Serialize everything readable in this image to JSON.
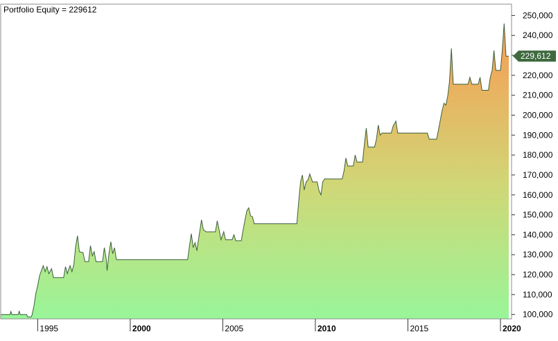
{
  "chart_data": {
    "type": "area",
    "title": "Portfolio Equity = 229612",
    "xlabel": "",
    "ylabel": "",
    "xlim": [
      1993.0,
      2020.6
    ],
    "ylim": [
      97800,
      255700
    ],
    "y_ticks": [
      100000,
      110000,
      120000,
      130000,
      140000,
      150000,
      160000,
      170000,
      180000,
      190000,
      200000,
      210000,
      220000,
      230000,
      240000,
      250000
    ],
    "y_tick_labels": [
      "100,000",
      "110,000",
      "120,000",
      "130,000",
      "140,000",
      "150,000",
      "160,000",
      "170,000",
      "180,000",
      "190,000",
      "200,000",
      "210,000",
      "220,000",
      "230,000",
      "240,000",
      "250,000"
    ],
    "x_ticks": [
      1995,
      2000,
      2005,
      2010,
      2015,
      2020
    ],
    "x_tick_labels": [
      "1995",
      "2000",
      "2005",
      "2010",
      "2015",
      "2020"
    ],
    "x_tick_bold": [
      false,
      true,
      false,
      true,
      false,
      true
    ],
    "last_value_label": "229,612",
    "last_value": 229612,
    "grid": false,
    "gradient": {
      "bottom": "#99f599",
      "middle": "#cfd877",
      "top": "#f0a75a"
    },
    "line_color": "#3b5f3b",
    "marker_color": "#3f6a3f",
    "series": [
      {
        "values": [
          [
            1993.0,
            100000
          ],
          [
            1993.5,
            100000
          ],
          [
            1993.55,
            101500
          ],
          [
            1993.6,
            100000
          ],
          [
            1993.95,
            100000
          ],
          [
            1994.0,
            101800
          ],
          [
            1994.05,
            100000
          ],
          [
            1994.4,
            100000
          ],
          [
            1994.45,
            98800
          ],
          [
            1994.65,
            98800
          ],
          [
            1994.7,
            100000
          ],
          [
            1994.8,
            104500
          ],
          [
            1994.9,
            110500
          ],
          [
            1995.0,
            114500
          ],
          [
            1995.1,
            119500
          ],
          [
            1995.2,
            122000
          ],
          [
            1995.3,
            124500
          ],
          [
            1995.4,
            121500
          ],
          [
            1995.5,
            124000
          ],
          [
            1995.6,
            120500
          ],
          [
            1995.75,
            123000
          ],
          [
            1995.85,
            118500
          ],
          [
            1996.4,
            118500
          ],
          [
            1996.5,
            124000
          ],
          [
            1996.6,
            120500
          ],
          [
            1996.75,
            124500
          ],
          [
            1996.85,
            121500
          ],
          [
            1996.95,
            125000
          ],
          [
            1997.05,
            134000
          ],
          [
            1997.15,
            139500
          ],
          [
            1997.25,
            131500
          ],
          [
            1997.45,
            131000
          ],
          [
            1997.55,
            126500
          ],
          [
            1997.75,
            126500
          ],
          [
            1997.85,
            134500
          ],
          [
            1997.95,
            129500
          ],
          [
            1998.05,
            131500
          ],
          [
            1998.15,
            126500
          ],
          [
            1998.5,
            126500
          ],
          [
            1998.6,
            133500
          ],
          [
            1998.7,
            128000
          ],
          [
            1998.75,
            122000
          ],
          [
            1998.85,
            130500
          ],
          [
            1998.95,
            136500
          ],
          [
            1999.05,
            130500
          ],
          [
            1999.15,
            133500
          ],
          [
            1999.25,
            127500
          ],
          [
            2003.1,
            127500
          ],
          [
            2003.2,
            134500
          ],
          [
            2003.3,
            140500
          ],
          [
            2003.4,
            133500
          ],
          [
            2003.5,
            136000
          ],
          [
            2003.6,
            132000
          ],
          [
            2003.65,
            135500
          ],
          [
            2003.75,
            141500
          ],
          [
            2003.85,
            147500
          ],
          [
            2003.95,
            142500
          ],
          [
            2004.1,
            141500
          ],
          [
            2004.6,
            141500
          ],
          [
            2004.7,
            147000
          ],
          [
            2004.8,
            142500
          ],
          [
            2004.9,
            137500
          ],
          [
            2005.05,
            141500
          ],
          [
            2005.15,
            137500
          ],
          [
            2005.5,
            137500
          ],
          [
            2005.6,
            140000
          ],
          [
            2005.7,
            137000
          ],
          [
            2006.0,
            137000
          ],
          [
            2006.1,
            142500
          ],
          [
            2006.2,
            147500
          ],
          [
            2006.3,
            152000
          ],
          [
            2006.4,
            153500
          ],
          [
            2006.5,
            149500
          ],
          [
            2006.6,
            149000
          ],
          [
            2006.7,
            145500
          ],
          [
            2009.0,
            145500
          ],
          [
            2009.1,
            156500
          ],
          [
            2009.2,
            166500
          ],
          [
            2009.3,
            170000
          ],
          [
            2009.4,
            162500
          ],
          [
            2009.5,
            166500
          ],
          [
            2009.6,
            167500
          ],
          [
            2009.7,
            170500
          ],
          [
            2009.85,
            166500
          ],
          [
            2010.1,
            166500
          ],
          [
            2010.2,
            162000
          ],
          [
            2010.3,
            160000
          ],
          [
            2010.4,
            166500
          ],
          [
            2010.5,
            168000
          ],
          [
            2011.45,
            168000
          ],
          [
            2011.55,
            172000
          ],
          [
            2011.65,
            178500
          ],
          [
            2011.75,
            174500
          ],
          [
            2012.05,
            174500
          ],
          [
            2012.15,
            180000
          ],
          [
            2012.25,
            176500
          ],
          [
            2012.55,
            176500
          ],
          [
            2012.65,
            185500
          ],
          [
            2012.75,
            193500
          ],
          [
            2012.85,
            184000
          ],
          [
            2013.2,
            184000
          ],
          [
            2013.3,
            188000
          ],
          [
            2013.4,
            195000
          ],
          [
            2013.5,
            190000
          ],
          [
            2013.6,
            191000
          ],
          [
            2014.1,
            191000
          ],
          [
            2014.2,
            194500
          ],
          [
            2014.35,
            197000
          ],
          [
            2014.45,
            191000
          ],
          [
            2016.05,
            191000
          ],
          [
            2016.15,
            188000
          ],
          [
            2016.55,
            188000
          ],
          [
            2016.65,
            192500
          ],
          [
            2016.75,
            197500
          ],
          [
            2016.85,
            202500
          ],
          [
            2016.95,
            206000
          ],
          [
            2017.05,
            205000
          ],
          [
            2017.15,
            209500
          ],
          [
            2017.25,
            217000
          ],
          [
            2017.35,
            233500
          ],
          [
            2017.45,
            215500
          ],
          [
            2018.25,
            215500
          ],
          [
            2018.35,
            219000
          ],
          [
            2018.45,
            215500
          ],
          [
            2018.8,
            215500
          ],
          [
            2018.9,
            219000
          ],
          [
            2019.0,
            212500
          ],
          [
            2019.35,
            212500
          ],
          [
            2019.45,
            219000
          ],
          [
            2019.55,
            222500
          ],
          [
            2019.65,
            232500
          ],
          [
            2019.75,
            222500
          ],
          [
            2020.0,
            222500
          ],
          [
            2020.1,
            232500
          ],
          [
            2020.2,
            246000
          ],
          [
            2020.3,
            229612
          ],
          [
            2020.45,
            229612
          ]
        ]
      }
    ]
  }
}
